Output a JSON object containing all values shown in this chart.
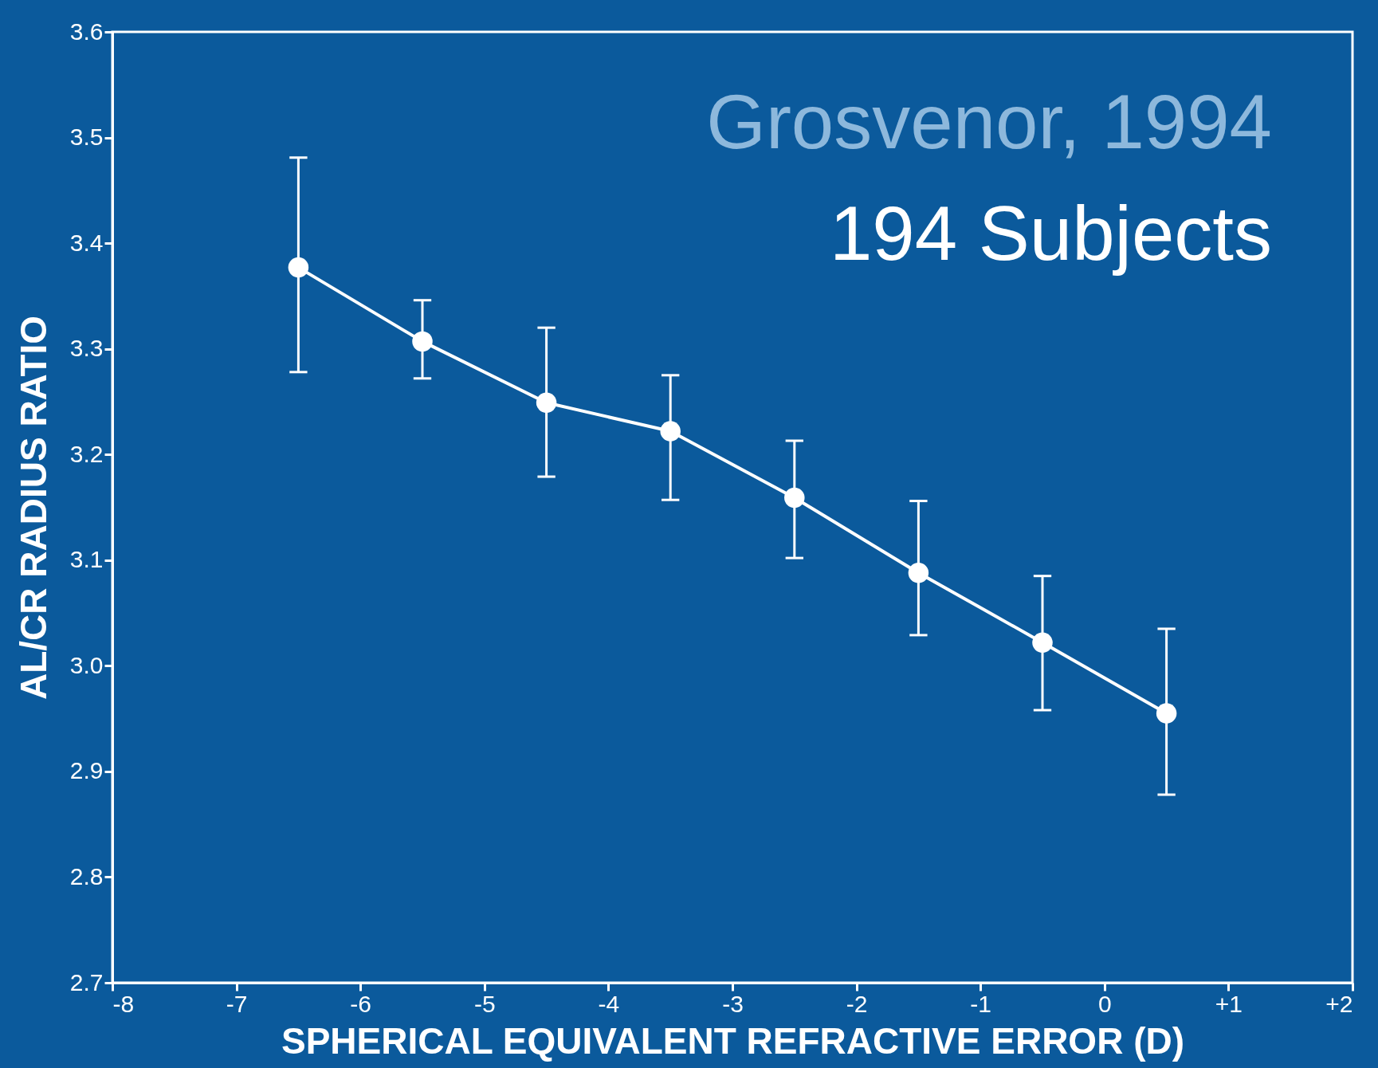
{
  "chart_data": {
    "type": "line",
    "xlabel": "SPHERICAL EQUIVALENT REFRACTIVE ERROR (D)",
    "ylabel": "AL/CR RADIUS RATIO",
    "x": [
      -6.5,
      -5.5,
      -4.5,
      -3.5,
      -2.5,
      -1.5,
      -0.5,
      0.5
    ],
    "series": [
      {
        "color": "#ffffff",
        "values": [
          3.377,
          3.307,
          3.249,
          3.222,
          3.159,
          3.088,
          3.022,
          2.955
        ],
        "errors": [
          [
            3.278,
            3.481
          ],
          [
            3.272,
            3.346
          ],
          [
            3.179,
            3.32
          ],
          [
            3.157,
            3.275
          ],
          [
            3.102,
            3.213
          ],
          [
            3.029,
            3.156
          ],
          [
            2.958,
            3.085
          ],
          [
            2.878,
            3.035
          ]
        ]
      }
    ],
    "marker": "circle",
    "line_style": "solid",
    "grid": false,
    "xlim": [
      -8,
      2
    ],
    "xticks": [
      -8,
      -7,
      -6,
      -5,
      -4,
      -3,
      -2,
      -1,
      0,
      {
        "value": 1,
        "label": "+1"
      },
      {
        "value": 2,
        "label": "+2"
      }
    ],
    "ylim": [
      2.7,
      3.6
    ],
    "yticks": [
      {
        "value": 2.7,
        "label": "2.7"
      },
      {
        "value": 2.8,
        "label": "2.8"
      },
      {
        "value": 2.9,
        "label": "2.9"
      },
      {
        "value": 3.0,
        "label": "3.0"
      },
      {
        "value": 3.1,
        "label": "3.1"
      },
      {
        "value": 3.2,
        "label": "3.2"
      },
      {
        "value": 3.3,
        "label": "3.3"
      },
      {
        "value": 3.4,
        "label": "3.4"
      },
      {
        "value": 3.5,
        "label": "3.5"
      },
      {
        "value": 3.6,
        "label": "3.6"
      }
    ],
    "annotations": [
      "Grosvenor, 1994",
      "194 Subjects"
    ]
  }
}
